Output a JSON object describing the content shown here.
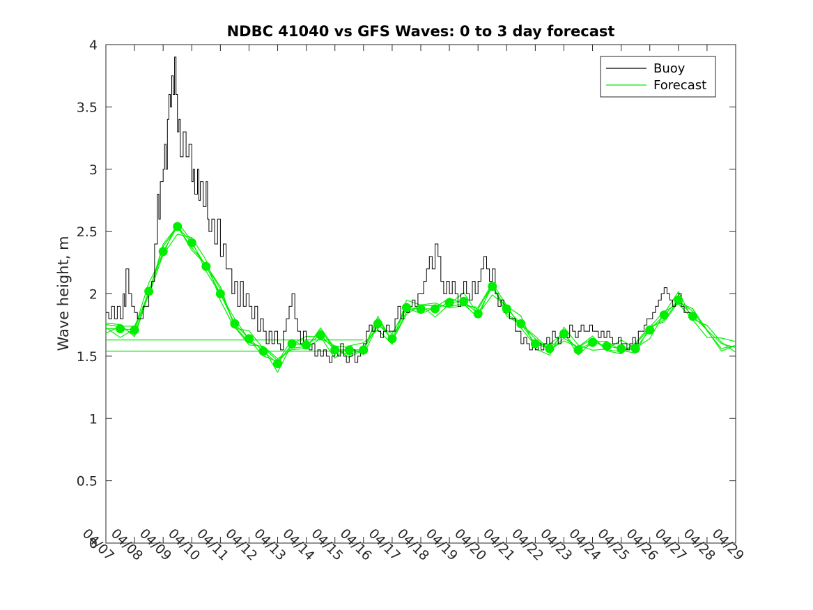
{
  "chart_data": {
    "type": "line",
    "title": "NDBC 41040 vs GFS Waves: 0 to 3 day forecast",
    "xlabel": "",
    "ylabel": "Wave height, m",
    "x_unit": "day index from 04/07",
    "xlim": [
      0,
      22
    ],
    "ylim": [
      0,
      4
    ],
    "y_ticks": [
      0,
      0.5,
      1,
      1.5,
      2,
      2.5,
      3,
      3.5,
      4
    ],
    "x_tick_labels": [
      "04/07",
      "04/08",
      "04/09",
      "04/10",
      "04/11",
      "04/12",
      "04/13",
      "04/14",
      "04/15",
      "04/16",
      "04/17",
      "04/18",
      "04/19",
      "04/20",
      "04/21",
      "04/22",
      "04/23",
      "04/24",
      "04/25",
      "04/26",
      "04/27",
      "04/28",
      "04/29"
    ],
    "grid": false,
    "legend_position": "top-right",
    "colors": {
      "buoy": "#000000",
      "forecast": "#00ee00",
      "axes": "#262626"
    },
    "series": [
      {
        "name": "Buoy",
        "color": "#000000",
        "points": [
          [
            0.0,
            1.85
          ],
          [
            0.1,
            1.8
          ],
          [
            0.2,
            1.9
          ],
          [
            0.3,
            1.8
          ],
          [
            0.4,
            1.9
          ],
          [
            0.5,
            1.8
          ],
          [
            0.6,
            2.0
          ],
          [
            0.65,
            1.9
          ],
          [
            0.7,
            2.2
          ],
          [
            0.8,
            2.0
          ],
          [
            0.9,
            1.9
          ],
          [
            1.0,
            1.85
          ],
          [
            1.1,
            1.8
          ],
          [
            1.2,
            1.8
          ],
          [
            1.3,
            1.9
          ],
          [
            1.4,
            1.9
          ],
          [
            1.5,
            2.0
          ],
          [
            1.6,
            2.1
          ],
          [
            1.7,
            2.4
          ],
          [
            1.8,
            2.8
          ],
          [
            1.85,
            2.6
          ],
          [
            1.9,
            2.9
          ],
          [
            2.0,
            3.0
          ],
          [
            2.05,
            3.2
          ],
          [
            2.1,
            3.0
          ],
          [
            2.15,
            3.4
          ],
          [
            2.2,
            3.6
          ],
          [
            2.25,
            3.5
          ],
          [
            2.3,
            3.75
          ],
          [
            2.35,
            3.6
          ],
          [
            2.4,
            3.9
          ],
          [
            2.45,
            3.6
          ],
          [
            2.5,
            3.3
          ],
          [
            2.55,
            3.4
          ],
          [
            2.6,
            3.1
          ],
          [
            2.7,
            3.3
          ],
          [
            2.8,
            3.1
          ],
          [
            2.9,
            3.2
          ],
          [
            3.0,
            2.9
          ],
          [
            3.05,
            3.0
          ],
          [
            3.1,
            2.8
          ],
          [
            3.2,
            3.0
          ],
          [
            3.25,
            2.75
          ],
          [
            3.3,
            2.9
          ],
          [
            3.4,
            2.7
          ],
          [
            3.5,
            2.9
          ],
          [
            3.55,
            2.6
          ],
          [
            3.6,
            2.5
          ],
          [
            3.7,
            2.6
          ],
          [
            3.8,
            2.4
          ],
          [
            3.9,
            2.6
          ],
          [
            4.0,
            2.3
          ],
          [
            4.1,
            2.4
          ],
          [
            4.2,
            2.2
          ],
          [
            4.3,
            2.2
          ],
          [
            4.4,
            2.0
          ],
          [
            4.5,
            2.1
          ],
          [
            4.6,
            1.9
          ],
          [
            4.7,
            2.1
          ],
          [
            4.8,
            1.9
          ],
          [
            4.9,
            2.0
          ],
          [
            5.0,
            1.9
          ],
          [
            5.1,
            1.8
          ],
          [
            5.2,
            1.9
          ],
          [
            5.3,
            1.7
          ],
          [
            5.4,
            1.8
          ],
          [
            5.5,
            1.7
          ],
          [
            5.6,
            1.6
          ],
          [
            5.7,
            1.7
          ],
          [
            5.8,
            1.6
          ],
          [
            5.9,
            1.7
          ],
          [
            6.0,
            1.6
          ],
          [
            6.1,
            1.55
          ],
          [
            6.2,
            1.7
          ],
          [
            6.3,
            1.8
          ],
          [
            6.4,
            1.9
          ],
          [
            6.5,
            2.0
          ],
          [
            6.6,
            1.8
          ],
          [
            6.7,
            1.7
          ],
          [
            6.8,
            1.6
          ],
          [
            6.9,
            1.7
          ],
          [
            7.0,
            1.6
          ],
          [
            7.1,
            1.55
          ],
          [
            7.2,
            1.6
          ],
          [
            7.3,
            1.5
          ],
          [
            7.4,
            1.55
          ],
          [
            7.5,
            1.5
          ],
          [
            7.6,
            1.55
          ],
          [
            7.7,
            1.5
          ],
          [
            7.8,
            1.45
          ],
          [
            7.9,
            1.5
          ],
          [
            8.0,
            1.55
          ],
          [
            8.1,
            1.5
          ],
          [
            8.2,
            1.6
          ],
          [
            8.3,
            1.5
          ],
          [
            8.4,
            1.45
          ],
          [
            8.5,
            1.5
          ],
          [
            8.6,
            1.55
          ],
          [
            8.7,
            1.45
          ],
          [
            8.8,
            1.5
          ],
          [
            8.9,
            1.55
          ],
          [
            9.0,
            1.6
          ],
          [
            9.1,
            1.7
          ],
          [
            9.2,
            1.75
          ],
          [
            9.3,
            1.7
          ],
          [
            9.4,
            1.75
          ],
          [
            9.5,
            1.7
          ],
          [
            9.6,
            1.65
          ],
          [
            9.7,
            1.7
          ],
          [
            9.8,
            1.75
          ],
          [
            9.9,
            1.7
          ],
          [
            10.0,
            1.7
          ],
          [
            10.1,
            1.8
          ],
          [
            10.2,
            1.9
          ],
          [
            10.3,
            1.8
          ],
          [
            10.4,
            1.9
          ],
          [
            10.5,
            1.85
          ],
          [
            10.6,
            1.9
          ],
          [
            10.7,
            1.95
          ],
          [
            10.8,
            1.9
          ],
          [
            10.9,
            2.0
          ],
          [
            11.0,
            2.0
          ],
          [
            11.1,
            2.1
          ],
          [
            11.2,
            2.2
          ],
          [
            11.3,
            2.3
          ],
          [
            11.4,
            2.2
          ],
          [
            11.5,
            2.4
          ],
          [
            11.6,
            2.3
          ],
          [
            11.7,
            2.1
          ],
          [
            11.8,
            2.0
          ],
          [
            11.9,
            2.1
          ],
          [
            12.0,
            2.0
          ],
          [
            12.1,
            2.1
          ],
          [
            12.2,
            2.0
          ],
          [
            12.3,
            1.9
          ],
          [
            12.4,
            2.0
          ],
          [
            12.5,
            2.1
          ],
          [
            12.6,
            2.0
          ],
          [
            12.7,
            1.95
          ],
          [
            12.8,
            2.1
          ],
          [
            12.9,
            2.0
          ],
          [
            13.0,
            2.1
          ],
          [
            13.1,
            2.2
          ],
          [
            13.2,
            2.3
          ],
          [
            13.3,
            2.2
          ],
          [
            13.4,
            2.1
          ],
          [
            13.5,
            2.2
          ],
          [
            13.6,
            2.0
          ],
          [
            13.7,
            1.9
          ],
          [
            13.8,
            1.95
          ],
          [
            13.9,
            1.85
          ],
          [
            14.0,
            1.9
          ],
          [
            14.1,
            1.8
          ],
          [
            14.2,
            1.8
          ],
          [
            14.3,
            1.7
          ],
          [
            14.4,
            1.7
          ],
          [
            14.5,
            1.6
          ],
          [
            14.6,
            1.65
          ],
          [
            14.7,
            1.6
          ],
          [
            14.8,
            1.55
          ],
          [
            14.9,
            1.6
          ],
          [
            15.0,
            1.55
          ],
          [
            15.1,
            1.6
          ],
          [
            15.2,
            1.55
          ],
          [
            15.3,
            1.6
          ],
          [
            15.4,
            1.65
          ],
          [
            15.5,
            1.6
          ],
          [
            15.6,
            1.7
          ],
          [
            15.7,
            1.65
          ],
          [
            15.8,
            1.6
          ],
          [
            15.9,
            1.7
          ],
          [
            16.0,
            1.7
          ],
          [
            16.1,
            1.65
          ],
          [
            16.2,
            1.75
          ],
          [
            16.3,
            1.7
          ],
          [
            16.4,
            1.65
          ],
          [
            16.5,
            1.7
          ],
          [
            16.6,
            1.75
          ],
          [
            16.7,
            1.7
          ],
          [
            16.8,
            1.7
          ],
          [
            16.9,
            1.75
          ],
          [
            17.0,
            1.7
          ],
          [
            17.1,
            1.7
          ],
          [
            17.2,
            1.65
          ],
          [
            17.3,
            1.7
          ],
          [
            17.4,
            1.65
          ],
          [
            17.5,
            1.7
          ],
          [
            17.6,
            1.65
          ],
          [
            17.7,
            1.6
          ],
          [
            17.8,
            1.6
          ],
          [
            17.9,
            1.65
          ],
          [
            18.0,
            1.6
          ],
          [
            18.1,
            1.6
          ],
          [
            18.2,
            1.55
          ],
          [
            18.3,
            1.6
          ],
          [
            18.4,
            1.65
          ],
          [
            18.5,
            1.6
          ],
          [
            18.6,
            1.7
          ],
          [
            18.7,
            1.7
          ],
          [
            18.8,
            1.75
          ],
          [
            18.9,
            1.8
          ],
          [
            19.0,
            1.8
          ],
          [
            19.1,
            1.85
          ],
          [
            19.2,
            1.9
          ],
          [
            19.3,
            1.95
          ],
          [
            19.4,
            2.0
          ],
          [
            19.5,
            2.05
          ],
          [
            19.6,
            2.0
          ],
          [
            19.7,
            1.95
          ],
          [
            19.8,
            1.9
          ],
          [
            19.9,
            1.95
          ],
          [
            20.0,
            2.0
          ],
          [
            20.1,
            1.9
          ],
          [
            20.2,
            1.85
          ],
          [
            20.3,
            1.85
          ],
          [
            20.4,
            1.8
          ]
        ]
      },
      {
        "name": "Forecast",
        "color": "#00ee00",
        "points": [
          [
            0.0,
            1.72
          ],
          [
            0.5,
            1.72
          ],
          [
            1.0,
            1.71
          ],
          [
            1.5,
            2.02
          ],
          [
            2.0,
            2.34
          ],
          [
            2.5,
            2.54
          ],
          [
            3.0,
            2.41
          ],
          [
            3.5,
            2.22
          ],
          [
            4.0,
            2.0
          ],
          [
            4.5,
            1.76
          ],
          [
            5.0,
            1.64
          ],
          [
            5.5,
            1.54
          ],
          [
            6.0,
            1.44
          ],
          [
            6.5,
            1.6
          ],
          [
            7.0,
            1.59
          ],
          [
            7.5,
            1.67
          ],
          [
            8.0,
            1.55
          ],
          [
            8.5,
            1.55
          ],
          [
            9.0,
            1.55
          ],
          [
            9.5,
            1.76
          ],
          [
            10.0,
            1.64
          ],
          [
            10.5,
            1.89
          ],
          [
            11.0,
            1.88
          ],
          [
            11.5,
            1.88
          ],
          [
            12.0,
            1.93
          ],
          [
            12.5,
            1.94
          ],
          [
            13.0,
            1.84
          ],
          [
            13.5,
            2.06
          ],
          [
            14.0,
            1.88
          ],
          [
            14.5,
            1.76
          ],
          [
            15.0,
            1.6
          ],
          [
            15.5,
            1.56
          ],
          [
            16.0,
            1.68
          ],
          [
            16.5,
            1.55
          ],
          [
            17.0,
            1.61
          ],
          [
            17.5,
            1.58
          ],
          [
            18.0,
            1.56
          ],
          [
            18.5,
            1.56
          ],
          [
            19.0,
            1.71
          ],
          [
            19.5,
            1.83
          ],
          [
            20.0,
            1.95
          ],
          [
            20.5,
            1.82
          ],
          [
            21.0,
            1.71
          ],
          [
            21.5,
            1.6
          ],
          [
            22.0,
            1.57
          ]
        ]
      }
    ],
    "forecast_markers": {
      "x": [
        0.5,
        1.0,
        1.5,
        2.0,
        2.5,
        3.0,
        3.5,
        4.0,
        4.5,
        5.0,
        5.5,
        6.0,
        6.5,
        7.0,
        7.5,
        8.0,
        8.5,
        9.0,
        9.5,
        10.0,
        10.5,
        11.0,
        11.5,
        12.0,
        12.5,
        13.0,
        13.5,
        14.0,
        14.5,
        15.0,
        15.5,
        16.0,
        16.5,
        17.0,
        17.5,
        18.0,
        18.5,
        19.0,
        19.5,
        20.0,
        20.5
      ],
      "y": [
        1.72,
        1.71,
        2.02,
        2.34,
        2.54,
        2.41,
        2.22,
        2.0,
        1.76,
        1.64,
        1.54,
        1.44,
        1.6,
        1.59,
        1.67,
        1.55,
        1.55,
        1.55,
        1.76,
        1.64,
        1.89,
        1.88,
        1.88,
        1.93,
        1.94,
        1.84,
        2.06,
        1.88,
        1.76,
        1.6,
        1.56,
        1.68,
        1.55,
        1.61,
        1.58,
        1.56,
        1.56,
        1.71,
        1.83,
        1.95,
        1.82
      ]
    },
    "reference_lines": [
      {
        "y": 1.63,
        "x_range": [
          0,
          9.0
        ]
      },
      {
        "y": 1.54,
        "x_range": [
          0,
          9.0
        ]
      }
    ]
  }
}
